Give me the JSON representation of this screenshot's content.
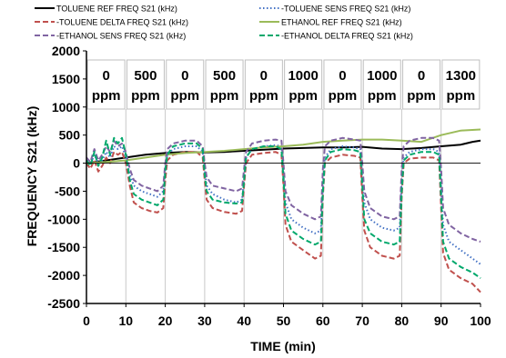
{
  "chart_data": {
    "type": "line",
    "title": "",
    "xlabel": "TIME (min)",
    "ylabel": "FREQUENCY S21 (kHz)",
    "xlim": [
      0,
      100
    ],
    "ylim": [
      -2500,
      2000
    ],
    "x_ticks": [
      0,
      10,
      20,
      30,
      40,
      50,
      60,
      70,
      80,
      90,
      100
    ],
    "y_ticks": [
      -2500,
      -2000,
      -1500,
      -1000,
      -500,
      0,
      500,
      1000,
      1500,
      2000
    ],
    "grid": false,
    "legend_position": "top",
    "phase_boundaries": [
      10,
      20,
      30,
      40,
      50,
      60,
      70,
      80,
      90
    ],
    "annotations": [
      {
        "value": "0",
        "unit": "ppm",
        "x_range": [
          0,
          10
        ]
      },
      {
        "value": "500",
        "unit": "ppm",
        "x_range": [
          10,
          20
        ]
      },
      {
        "value": "0",
        "unit": "ppm",
        "x_range": [
          20,
          30
        ]
      },
      {
        "value": "500",
        "unit": "ppm",
        "x_range": [
          30,
          40
        ]
      },
      {
        "value": "0",
        "unit": "ppm",
        "x_range": [
          40,
          50
        ]
      },
      {
        "value": "1000",
        "unit": "ppm",
        "x_range": [
          50,
          60
        ]
      },
      {
        "value": "0",
        "unit": "ppm",
        "x_range": [
          60,
          70
        ]
      },
      {
        "value": "1000",
        "unit": "ppm",
        "x_range": [
          70,
          80
        ]
      },
      {
        "value": "0",
        "unit": "ppm",
        "x_range": [
          80,
          90
        ]
      },
      {
        "value": "1300",
        "unit": "ppm",
        "x_range": [
          90,
          100
        ]
      }
    ],
    "series": [
      {
        "name": "TOLUENE REF FREQ S21 (kHz)",
        "color": "#000000",
        "dash": "solid",
        "x": [
          0,
          5,
          10,
          15,
          20,
          25,
          30,
          35,
          40,
          45,
          50,
          55,
          60,
          65,
          70,
          75,
          80,
          85,
          90,
          95,
          98,
          100
        ],
        "y": [
          0,
          50,
          100,
          150,
          180,
          200,
          190,
          200,
          220,
          240,
          260,
          270,
          280,
          280,
          290,
          260,
          250,
          270,
          300,
          330,
          380,
          400
        ]
      },
      {
        "name": "TOLUENE SENS FREQ S21 (kHz)",
        "color": "#4472c4",
        "dash": "dot",
        "x": [
          0,
          1,
          2,
          3,
          4,
          5,
          6,
          7,
          8,
          9,
          10,
          11,
          12,
          14,
          16,
          18,
          19.5,
          20,
          20.5,
          22,
          25,
          28,
          29.5,
          30,
          30.5,
          32,
          35,
          38,
          39.5,
          40,
          40.5,
          42,
          45,
          48,
          49.5,
          50,
          50.5,
          52,
          55,
          58,
          59.5,
          60,
          60.5,
          62,
          65,
          68,
          69.5,
          70,
          70.5,
          72,
          75,
          78,
          79.5,
          80,
          80.5,
          82,
          85,
          88,
          89.5,
          90,
          90.5,
          92,
          95,
          98,
          100
        ],
        "y": [
          50,
          -20,
          150,
          0,
          50,
          200,
          100,
          300,
          250,
          300,
          100,
          -200,
          -400,
          -500,
          -550,
          -600,
          -500,
          -100,
          150,
          250,
          300,
          300,
          200,
          -100,
          -400,
          -550,
          -650,
          -700,
          -650,
          -300,
          100,
          250,
          300,
          320,
          300,
          -200,
          -700,
          -1000,
          -1150,
          -1250,
          -1200,
          -400,
          100,
          250,
          300,
          280,
          250,
          -300,
          -700,
          -1000,
          -1150,
          -1200,
          -1150,
          -300,
          100,
          200,
          250,
          250,
          200,
          -400,
          -1100,
          -1400,
          -1550,
          -1700,
          -1800
        ]
      },
      {
        "name": "TOLUENE DELTA FREQ S21 (kHz)",
        "color": "#c0504d",
        "dash": "dash",
        "x": [
          0,
          1,
          2,
          3,
          4,
          5,
          6,
          7,
          8,
          9,
          10,
          11,
          12,
          14,
          16,
          18,
          19.5,
          20,
          20.5,
          22,
          25,
          28,
          29.5,
          30,
          30.5,
          32,
          35,
          38,
          39.5,
          40,
          40.5,
          42,
          45,
          48,
          49.5,
          50,
          50.5,
          52,
          55,
          58,
          59.5,
          60,
          60.5,
          62,
          65,
          68,
          69.5,
          70,
          70.5,
          72,
          75,
          78,
          79.5,
          80,
          80.5,
          82,
          85,
          88,
          89.5,
          90,
          90.5,
          92,
          95,
          98,
          100
        ],
        "y": [
          0,
          -100,
          50,
          -150,
          -50,
          100,
          0,
          200,
          150,
          200,
          0,
          -400,
          -700,
          -800,
          -850,
          -880,
          -800,
          -300,
          50,
          150,
          200,
          200,
          100,
          -300,
          -650,
          -800,
          -870,
          -900,
          -850,
          -400,
          0,
          150,
          180,
          200,
          150,
          -400,
          -1100,
          -1400,
          -1550,
          -1700,
          -1650,
          -600,
          0,
          100,
          150,
          130,
          100,
          -600,
          -1200,
          -1500,
          -1650,
          -1700,
          -1650,
          -600,
          0,
          80,
          100,
          100,
          50,
          -800,
          -1600,
          -1900,
          -2050,
          -2150,
          -2300
        ]
      },
      {
        "name": "ETHANOL REF FREQ S21 (kHz)",
        "color": "#9bbb59",
        "dash": "solid",
        "x": [
          0,
          5,
          10,
          15,
          20,
          25,
          30,
          35,
          40,
          45,
          50,
          55,
          60,
          65,
          70,
          75,
          80,
          85,
          90,
          95,
          100
        ],
        "y": [
          0,
          20,
          50,
          100,
          150,
          180,
          200,
          220,
          250,
          280,
          300,
          330,
          380,
          400,
          420,
          420,
          400,
          380,
          500,
          580,
          600
        ]
      },
      {
        "name": "ETHANOL SENS FREQ S21 (kHz)",
        "color": "#8064a2",
        "dash": "dash",
        "x": [
          0,
          1,
          2,
          3,
          4,
          5,
          6,
          7,
          8,
          9,
          10,
          11,
          12,
          14,
          16,
          18,
          19.5,
          20,
          20.5,
          22,
          25,
          28,
          29.5,
          30,
          30.5,
          32,
          35,
          38,
          39.5,
          40,
          40.5,
          42,
          45,
          48,
          49.5,
          50,
          50.5,
          52,
          55,
          58,
          59.5,
          60,
          60.5,
          62,
          65,
          68,
          69.5,
          70,
          70.5,
          72,
          75,
          78,
          79.5,
          80,
          80.5,
          82,
          85,
          88,
          89.5,
          90,
          90.5,
          92,
          95,
          98,
          100
        ],
        "y": [
          100,
          20,
          250,
          50,
          150,
          300,
          200,
          400,
          300,
          350,
          200,
          -100,
          -300,
          -400,
          -450,
          -500,
          -400,
          0,
          250,
          350,
          400,
          400,
          300,
          0,
          -250,
          -400,
          -450,
          -500,
          -450,
          -100,
          200,
          350,
          400,
          420,
          400,
          0,
          -500,
          -750,
          -900,
          -1000,
          -950,
          -100,
          300,
          400,
          450,
          420,
          400,
          0,
          -500,
          -800,
          -950,
          -1000,
          -950,
          -100,
          300,
          400,
          450,
          450,
          400,
          -100,
          -800,
          -1100,
          -1250,
          -1350,
          -1400
        ]
      },
      {
        "name": "ETHANOL DELTA FREQ S21 (kHz)",
        "color": "#00a86b",
        "dash": "dash",
        "x": [
          0,
          1,
          2,
          3,
          4,
          5,
          6,
          7,
          8,
          9,
          10,
          11,
          12,
          14,
          16,
          18,
          19.5,
          20,
          20.5,
          22,
          25,
          28,
          29.5,
          30,
          30.5,
          32,
          35,
          38,
          39.5,
          40,
          40.5,
          42,
          45,
          48,
          49.5,
          50,
          50.5,
          52,
          55,
          58,
          59.5,
          60,
          60.5,
          62,
          65,
          68,
          69.5,
          70,
          70.5,
          72,
          75,
          78,
          79.5,
          80,
          80.5,
          82,
          85,
          88,
          89.5,
          90,
          90.5,
          92,
          95,
          98,
          100
        ],
        "y": [
          50,
          -50,
          200,
          -50,
          100,
          400,
          150,
          450,
          350,
          450,
          150,
          -300,
          -550,
          -650,
          -700,
          -750,
          -650,
          -150,
          150,
          300,
          350,
          350,
          250,
          -200,
          -500,
          -650,
          -700,
          -720,
          -700,
          -300,
          100,
          250,
          300,
          300,
          250,
          -300,
          -900,
          -1200,
          -1350,
          -1450,
          -1400,
          -500,
          50,
          200,
          250,
          230,
          200,
          -400,
          -1000,
          -1250,
          -1400,
          -1450,
          -1400,
          -500,
          50,
          150,
          200,
          200,
          150,
          -600,
          -1400,
          -1700,
          -1850,
          -1950,
          -2050
        ]
      }
    ]
  }
}
